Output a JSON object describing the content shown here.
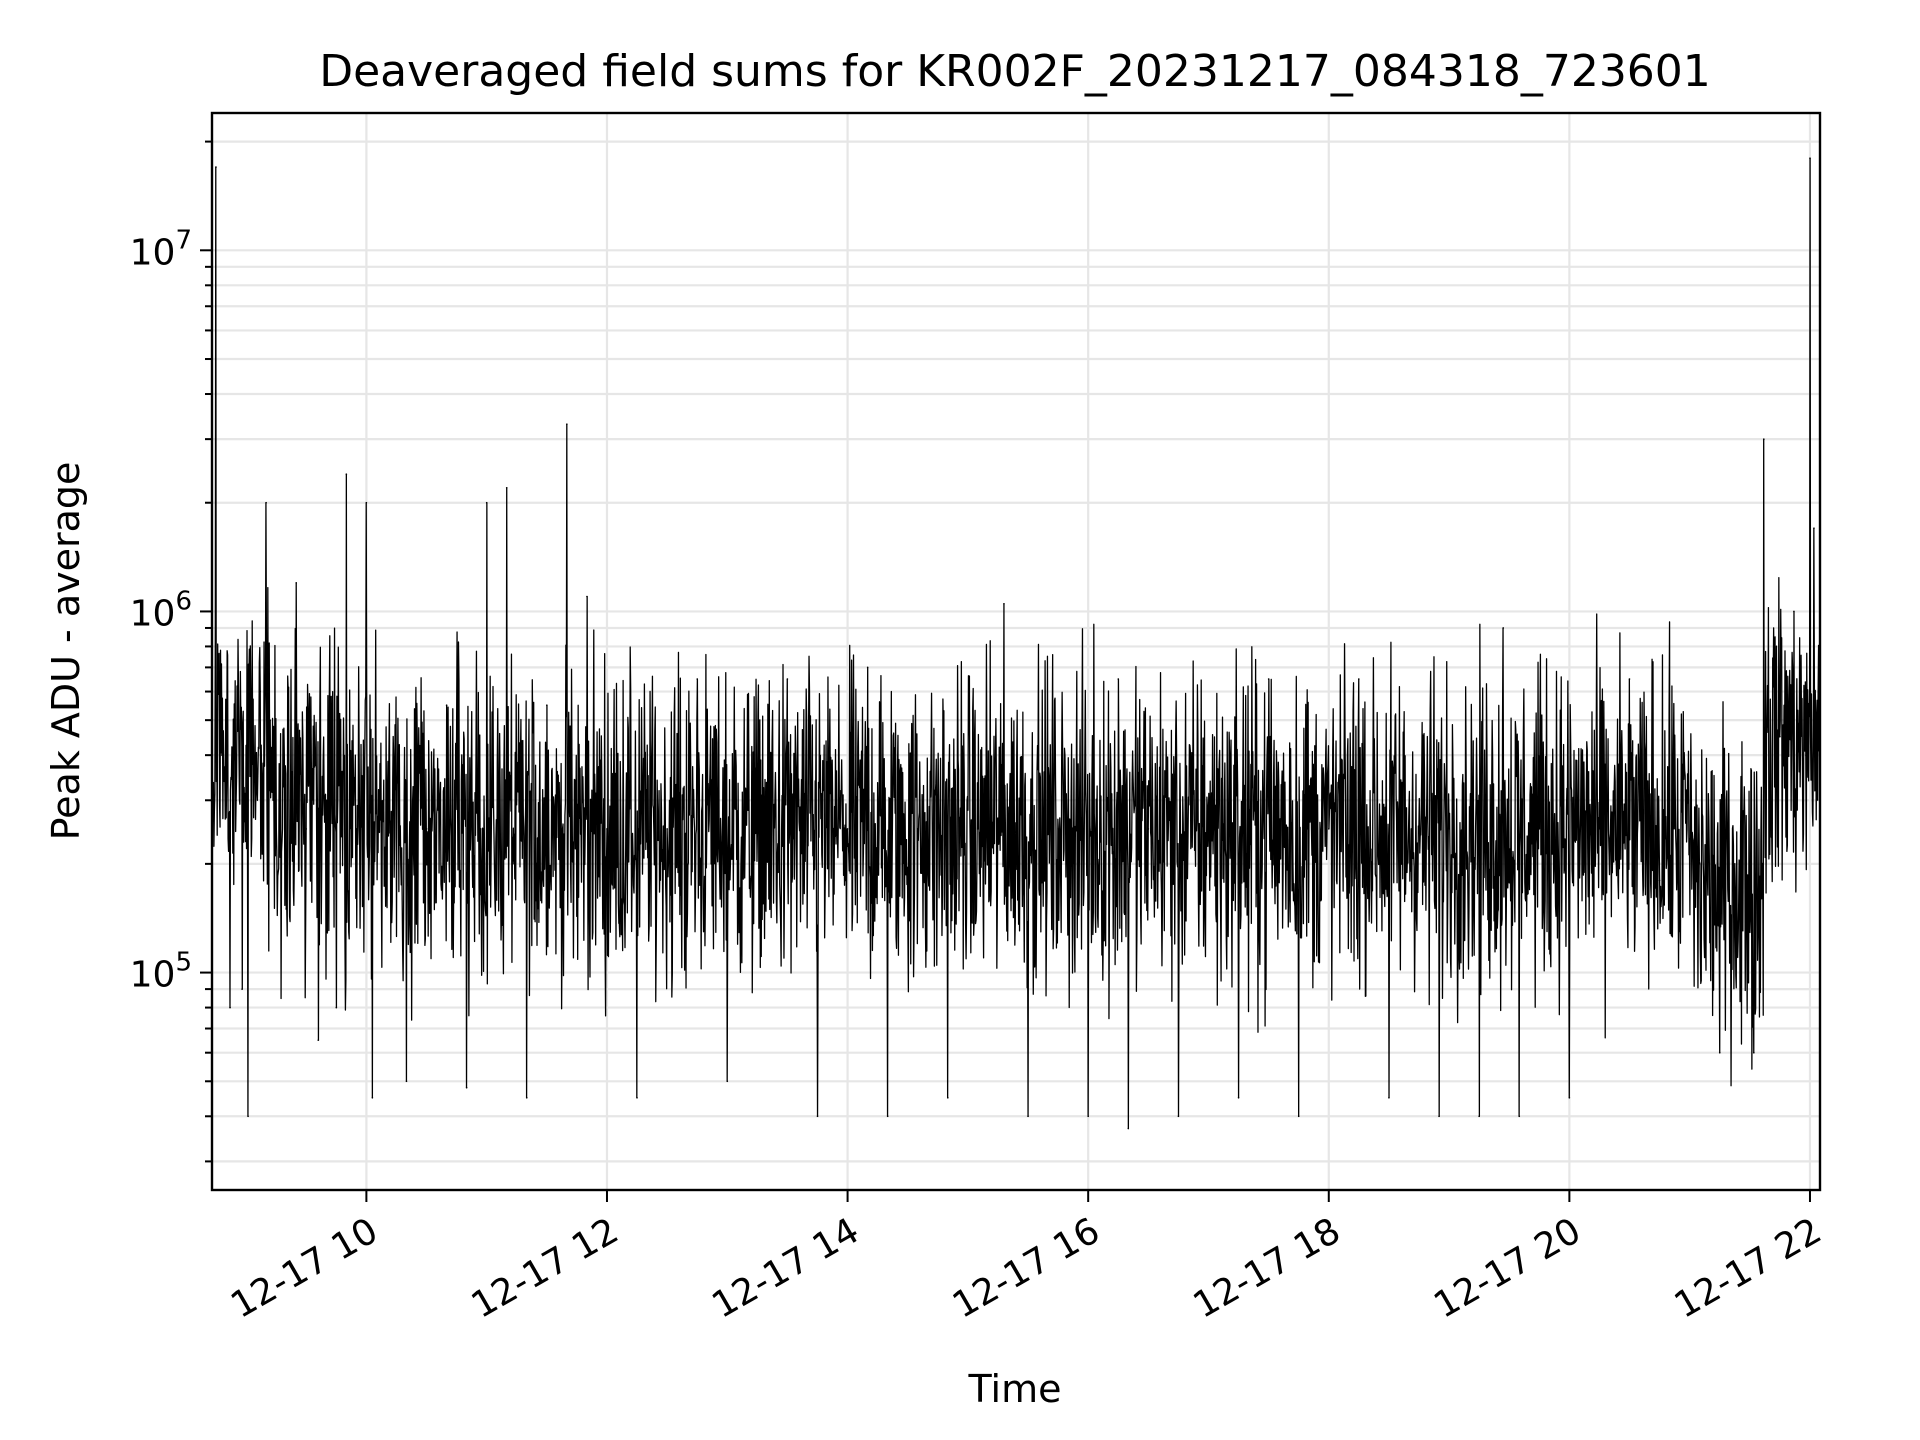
{
  "chart_data": {
    "type": "line",
    "title": "Deaveraged field sums for KR002F_20231217_084318_723601",
    "xlabel": "Time",
    "ylabel": "Peak ADU - average",
    "yscale": "log",
    "ylim": [
      25000,
      24000000
    ],
    "xlim": [
      "2023-12-17T08:43",
      "2023-12-17T22:05"
    ],
    "x_ticks": [
      {
        "value": "2023-12-17T10:00",
        "label": "12-17 10"
      },
      {
        "value": "2023-12-17T12:00",
        "label": "12-17 12"
      },
      {
        "value": "2023-12-17T14:00",
        "label": "12-17 14"
      },
      {
        "value": "2023-12-17T16:00",
        "label": "12-17 16"
      },
      {
        "value": "2023-12-17T18:00",
        "label": "12-17 18"
      },
      {
        "value": "2023-12-17T20:00",
        "label": "12-17 20"
      },
      {
        "value": "2023-12-17T22:00",
        "label": "12-17 22"
      }
    ],
    "y_ticks": [
      {
        "value": 100000,
        "base": "10",
        "exp": "5"
      },
      {
        "value": 1000000,
        "base": "10",
        "exp": "6"
      },
      {
        "value": 10000000,
        "base": "10",
        "exp": "7"
      }
    ],
    "grid": true,
    "line_color": "#000000",
    "series": [
      {
        "x": [
          "2023-12-17T08:43",
          "2023-12-17T08:45",
          "2023-12-17T08:48",
          "2023-12-17T08:52",
          "2023-12-17T08:55",
          "2023-12-17T08:58",
          "2023-12-17T09:01",
          "2023-12-17T09:04",
          "2023-12-17T09:07",
          "2023-12-17T09:10",
          "2023-12-17T09:12",
          "2023-12-17T09:15",
          "2023-12-17T09:20",
          "2023-12-17T09:25",
          "2023-12-17T09:30",
          "2023-12-17T09:36",
          "2023-12-17T09:40",
          "2023-12-17T09:45",
          "2023-12-17T09:50",
          "2023-12-17T09:55",
          "2023-12-17T10:00",
          "2023-12-17T10:03",
          "2023-12-17T10:10",
          "2023-12-17T10:20",
          "2023-12-17T10:30",
          "2023-12-17T10:40",
          "2023-12-17T10:50",
          "2023-12-17T10:57",
          "2023-12-17T11:00",
          "2023-12-17T11:10",
          "2023-12-17T11:20",
          "2023-12-17T11:30",
          "2023-12-17T11:33",
          "2023-12-17T11:40",
          "2023-12-17T11:50",
          "2023-12-17T12:00",
          "2023-12-17T12:15",
          "2023-12-17T12:30",
          "2023-12-17T12:45",
          "2023-12-17T13:00",
          "2023-12-17T13:15",
          "2023-12-17T13:30",
          "2023-12-17T13:45",
          "2023-12-17T14:00",
          "2023-12-17T14:10",
          "2023-12-17T14:20",
          "2023-12-17T14:35",
          "2023-12-17T14:50",
          "2023-12-17T15:05",
          "2023-12-17T15:18",
          "2023-12-17T15:30",
          "2023-12-17T15:45",
          "2023-12-17T16:00",
          "2023-12-17T16:15",
          "2023-12-17T16:20",
          "2023-12-17T16:30",
          "2023-12-17T16:45",
          "2023-12-17T17:00",
          "2023-12-17T17:15",
          "2023-12-17T17:30",
          "2023-12-17T17:45",
          "2023-12-17T18:00",
          "2023-12-17T18:15",
          "2023-12-17T18:30",
          "2023-12-17T18:45",
          "2023-12-17T18:55",
          "2023-12-17T19:00",
          "2023-12-17T19:15",
          "2023-12-17T19:27",
          "2023-12-17T19:35",
          "2023-12-17T19:45",
          "2023-12-17T20:00",
          "2023-12-17T20:15",
          "2023-12-17T20:30",
          "2023-12-17T20:45",
          "2023-12-17T20:55",
          "2023-12-17T21:05",
          "2023-12-17T21:15",
          "2023-12-17T21:25",
          "2023-12-17T21:32",
          "2023-12-17T21:37",
          "2023-12-17T21:45",
          "2023-12-17T21:52",
          "2023-12-17T21:58",
          "2023-12-17T22:00",
          "2023-12-17T22:02",
          "2023-12-17T22:05"
        ],
        "y": [
          250000,
          17000000,
          400000,
          80000,
          300000,
          90000,
          40000,
          350000,
          600000,
          2000000,
          500000,
          250000,
          150000,
          1200000,
          250000,
          65000,
          300000,
          80000,
          2400000,
          250000,
          2000000,
          45000,
          250000,
          50000,
          250000,
          550000,
          48000,
          250000,
          2000000,
          2200000,
          45000,
          550000,
          250000,
          3300000,
          1100000,
          250000,
          45000,
          250000,
          650000,
          50000,
          250000,
          650000,
          40000,
          250000,
          700000,
          40000,
          250000,
          45000,
          250000,
          1050000,
          40000,
          250000,
          40000,
          650000,
          37000,
          250000,
          40000,
          250000,
          45000,
          650000,
          40000,
          250000,
          650000,
          45000,
          250000,
          40000,
          250000,
          40000,
          900000,
          40000,
          250000,
          45000,
          250000,
          650000,
          180000,
          130000,
          200000,
          60000,
          200000,
          60000,
          3000000,
          450000,
          1000000,
          400000,
          18000000,
          1700000,
          500000
        ]
      }
    ]
  }
}
